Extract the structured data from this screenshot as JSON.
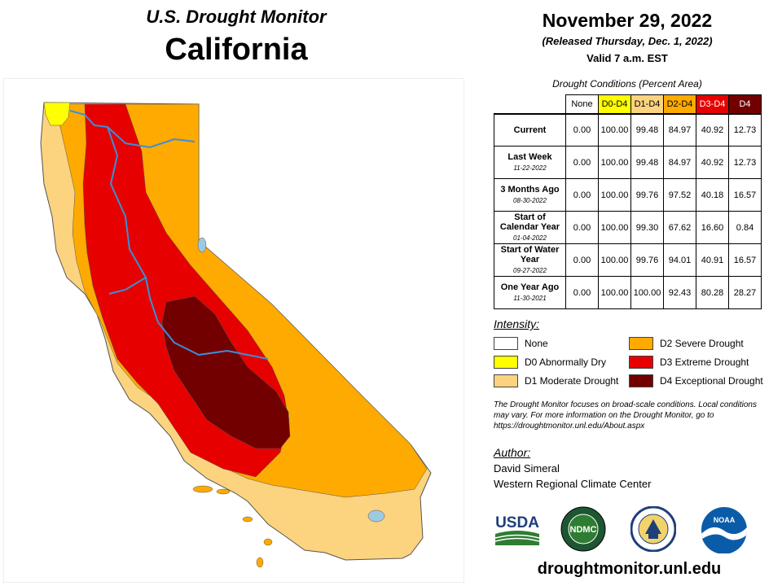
{
  "header": {
    "title": "U.S. Drought Monitor",
    "state": "California"
  },
  "date": {
    "main": "November 29, 2022",
    "released": "(Released Thursday, Dec. 1, 2022)",
    "valid": "Valid 7 a.m. EST"
  },
  "table": {
    "caption": "Drought Conditions (Percent Area)",
    "columns": [
      {
        "label": "None",
        "color": "#ffffff",
        "text_color": "#000000"
      },
      {
        "label": "D0-D4",
        "color": "#ffff00",
        "text_color": "#000000"
      },
      {
        "label": "D1-D4",
        "color": "#fcd37f",
        "text_color": "#000000"
      },
      {
        "label": "D2-D4",
        "color": "#ffaa00",
        "text_color": "#000000"
      },
      {
        "label": "D3-D4",
        "color": "#e60000",
        "text_color": "#ffffff"
      },
      {
        "label": "D4",
        "color": "#730000",
        "text_color": "#ffffff"
      }
    ],
    "rows": [
      {
        "label": "Current",
        "date": "",
        "values": [
          "0.00",
          "100.00",
          "99.48",
          "84.97",
          "40.92",
          "12.73"
        ]
      },
      {
        "label": "Last Week",
        "date": "11-22-2022",
        "values": [
          "0.00",
          "100.00",
          "99.48",
          "84.97",
          "40.92",
          "12.73"
        ]
      },
      {
        "label": "3 Months Ago",
        "date": "08-30-2022",
        "values": [
          "0.00",
          "100.00",
          "99.76",
          "97.52",
          "40.18",
          "16.57"
        ]
      },
      {
        "label": "Start of Calendar Year",
        "date": "01-04-2022",
        "values": [
          "0.00",
          "100.00",
          "99.30",
          "67.62",
          "16.60",
          "0.84"
        ]
      },
      {
        "label": "Start of Water Year",
        "date": "09-27-2022",
        "values": [
          "0.00",
          "100.00",
          "99.76",
          "94.01",
          "40.91",
          "16.57"
        ]
      },
      {
        "label": "One Year Ago",
        "date": "11-30-2021",
        "values": [
          "0.00",
          "100.00",
          "100.00",
          "92.43",
          "80.28",
          "28.27"
        ]
      }
    ]
  },
  "intensity": {
    "heading": "Intensity:",
    "items": [
      {
        "label": "None",
        "color": "#ffffff"
      },
      {
        "label": "D0 Abnormally Dry",
        "color": "#ffff00"
      },
      {
        "label": "D1 Moderate Drought",
        "color": "#fcd37f"
      },
      {
        "label": "D2 Severe Drought",
        "color": "#ffaa00"
      },
      {
        "label": "D3 Extreme Drought",
        "color": "#e60000"
      },
      {
        "label": "D4 Exceptional Drought",
        "color": "#730000"
      }
    ]
  },
  "note": "The Drought Monitor focuses on broad-scale conditions. Local conditions may vary. For more information on the Drought Monitor, go to https://droughtmonitor.unl.edu/About.aspx",
  "author": {
    "heading": "Author:",
    "name": "David Simeral",
    "org": "Western Regional Climate Center"
  },
  "logos": {
    "usda": "USDA",
    "ndmc": "NDMC",
    "noaa": "NOAA"
  },
  "site": "droughtmonitor.unl.edu"
}
